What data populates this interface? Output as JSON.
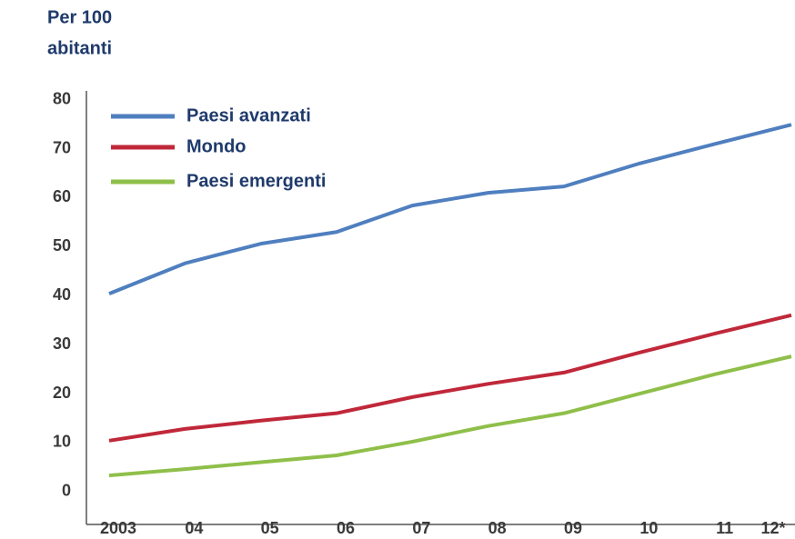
{
  "chart_data": {
    "type": "line",
    "title": [
      "Per 100",
      "abitanti"
    ],
    "categories": [
      "2003",
      "04",
      "05",
      "06",
      "07",
      "08",
      "09",
      "10",
      "11",
      "12*"
    ],
    "series": [
      {
        "name": "Paesi avanzati",
        "color": "#4f7fbf",
        "values": [
          40.4,
          46.6,
          50.6,
          53,
          58.4,
          61,
          62.3,
          67,
          71,
          74.9
        ]
      },
      {
        "name": "Mondo",
        "color": "#c0283a",
        "values": [
          10.4,
          12.8,
          14.5,
          16,
          19.3,
          22,
          24.3,
          28.4,
          32.3,
          36
        ]
      },
      {
        "name": "Paesi emergenti",
        "color": "#8fbf4a",
        "values": [
          3.3,
          4.6,
          6,
          7.4,
          10.2,
          13.4,
          16,
          20,
          24,
          27.6
        ]
      }
    ],
    "ylim": [
      -6.7,
      81.8
    ],
    "yticks": [
      0,
      10,
      20,
      30,
      40,
      50,
      60,
      70,
      80
    ],
    "grid": false
  }
}
